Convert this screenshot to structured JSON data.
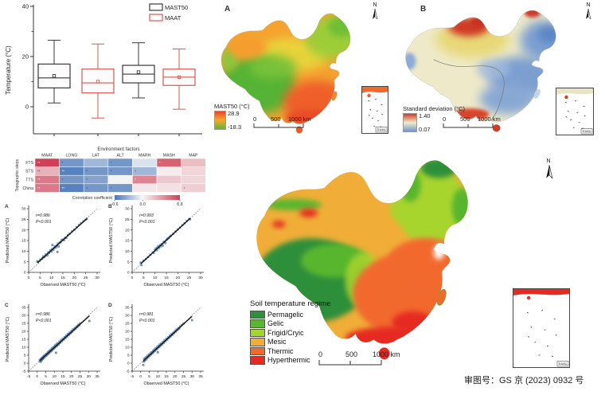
{
  "caption": "审图号：GS 京 (2023) 0932 号",
  "inset_label": "南海诸岛",
  "north_label": "N",
  "chart_data": [
    {
      "id": "boxplot",
      "type": "box",
      "ylabel": "Temperature (°C)",
      "yticks": [
        0,
        20,
        40
      ],
      "ylim": [
        -12,
        40
      ],
      "legend": [
        {
          "label": "MAST50",
          "color": "#3a3a3a"
        },
        {
          "label": "MAAT",
          "color": "#d9584e"
        }
      ],
      "groups": [
        {
          "series": "MAST50",
          "color": "#3a3a3a",
          "whislo": 1.5,
          "q1": 7.5,
          "median": 11.5,
          "mean": 12.3,
          "q3": 17.0,
          "whishi": 26.5
        },
        {
          "series": "MAAT",
          "color": "#d9584e",
          "whislo": -4.5,
          "q1": 5.5,
          "median": 9.5,
          "mean": 10.0,
          "q3": 15.0,
          "whishi": 25.0
        },
        {
          "series": "MAST50",
          "color": "#3a3a3a",
          "whislo": 3.5,
          "q1": 9.5,
          "median": 13.0,
          "mean": 13.8,
          "q3": 16.5,
          "whishi": 25.5
        },
        {
          "series": "MAAT",
          "color": "#d9584e",
          "whislo": -1.0,
          "q1": 8.5,
          "median": 11.8,
          "mean": 11.8,
          "q3": 15.0,
          "whishi": 23.0
        }
      ]
    },
    {
      "id": "heatmap",
      "type": "heatmap",
      "title": "Environment factors",
      "ylabel": "Topographic steps",
      "columns": [
        "MAAT",
        "LONG",
        "LAT",
        "ALT",
        "MARH",
        "MASH",
        "MAP"
      ],
      "rows": [
        "FTS",
        "STS",
        "TTS",
        "China"
      ],
      "values": [
        [
          0.8,
          -0.45,
          -0.3,
          -0.45,
          -0.1,
          0.65,
          0.25
        ],
        [
          0.3,
          -0.55,
          -0.45,
          -0.45,
          -0.3,
          0.05,
          0.15
        ],
        [
          0.55,
          -0.45,
          -0.4,
          -0.02,
          0.5,
          0.2,
          0.15
        ],
        [
          0.55,
          -0.55,
          -0.45,
          -0.45,
          0.08,
          0.1,
          0.18
        ]
      ],
      "sig": [
        [
          "**",
          "*",
          "",
          "*",
          "",
          "*",
          ""
        ],
        [
          "**",
          "**",
          "*",
          "*",
          "*",
          "",
          ""
        ],
        [
          "**",
          "*",
          "*",
          "",
          "*",
          "",
          ""
        ],
        [
          "**",
          "**",
          "*",
          "*",
          "",
          "",
          "*"
        ]
      ],
      "colorbar": {
        "label": "Correlation coefficient",
        "ticks": [
          "-0.6",
          "0.0",
          "0.8"
        ],
        "tick_values": [
          -0.6,
          0.0,
          0.8
        ],
        "min_color": "#4a77b8",
        "mid_color": "#f7f7f7",
        "max_color": "#cf3f55",
        "range": [
          -0.6,
          0.8
        ]
      }
    },
    {
      "id": "scatter-a",
      "type": "scatter",
      "panel": "A",
      "r_label": "r=0.986",
      "p_label": "P<0.001",
      "xlabel": "Observed MAST50 (°C)",
      "ylabel": "Predicted MAST50 (°C)",
      "min": 0,
      "max": 30,
      "tick_step": 5,
      "point_color": "#5f8ab8",
      "points": [
        [
          3.8,
          5.2
        ],
        [
          4.2,
          5.0
        ],
        [
          5.1,
          6.0
        ],
        [
          6.0,
          6.6
        ],
        [
          6.4,
          7.5
        ],
        [
          7.0,
          7.3
        ],
        [
          7.5,
          8.4
        ],
        [
          8.2,
          8.0
        ],
        [
          8.6,
          9.4
        ],
        [
          9.0,
          9.2
        ],
        [
          9.5,
          10.3
        ],
        [
          10.0,
          9.8
        ],
        [
          10.2,
          11.0
        ],
        [
          10.4,
          12.9
        ],
        [
          10.8,
          10.6
        ],
        [
          11.2,
          11.5
        ],
        [
          11.5,
          12.3
        ],
        [
          12.0,
          11.8
        ],
        [
          12.4,
          12.6
        ],
        [
          12.6,
          9.6
        ],
        [
          12.8,
          13.5
        ],
        [
          13.2,
          12.2
        ],
        [
          13.6,
          14.0
        ],
        [
          14.0,
          14.3
        ],
        [
          14.5,
          15.2
        ],
        [
          15.0,
          15.5
        ],
        [
          15.5,
          15.2
        ],
        [
          16.0,
          16.3
        ],
        [
          16.5,
          16.2
        ],
        [
          17.2,
          17.5
        ],
        [
          18.0,
          18.2
        ],
        [
          19.0,
          19.3
        ],
        [
          20.0,
          20.1
        ],
        [
          21.0,
          21.2
        ],
        [
          22.0,
          22.3
        ],
        [
          23.0,
          23.2
        ],
        [
          24.0,
          24.1
        ],
        [
          25.0,
          24.8
        ],
        [
          25.5,
          25.3
        ]
      ]
    },
    {
      "id": "scatter-b",
      "type": "scatter",
      "panel": "B",
      "r_label": "r=0.993",
      "p_label": "P<0.001",
      "xlabel": "Observed MAST50 (°C)",
      "ylabel": "Predicted MAST50 (°C)",
      "min": 0,
      "max": 30,
      "tick_step": 5,
      "point_color": "#5f8ab8",
      "points": [
        [
          3.8,
          4.6
        ],
        [
          4.1,
          3.4
        ],
        [
          5.0,
          5.5
        ],
        [
          6.0,
          6.3
        ],
        [
          7.0,
          7.2
        ],
        [
          8.0,
          8.3
        ],
        [
          9.0,
          9.4
        ],
        [
          9.5,
          9.2
        ],
        [
          10.0,
          10.4
        ],
        [
          10.3,
          11.2
        ],
        [
          10.8,
          10.5
        ],
        [
          11.0,
          11.6
        ],
        [
          11.4,
          12.3
        ],
        [
          11.8,
          11.5
        ],
        [
          12.2,
          12.8
        ],
        [
          12.6,
          12.3
        ],
        [
          13.0,
          13.4
        ],
        [
          13.4,
          12.6
        ],
        [
          13.8,
          14.2
        ],
        [
          14.2,
          14.5
        ],
        [
          14.6,
          13.8
        ],
        [
          15.0,
          15.3
        ],
        [
          15.5,
          15.8
        ],
        [
          16.0,
          16.2
        ],
        [
          16.5,
          16.8
        ],
        [
          17.0,
          17.3
        ],
        [
          18.0,
          18.2
        ],
        [
          19.0,
          19.2
        ],
        [
          20.0,
          20.2
        ],
        [
          21.0,
          21.1
        ],
        [
          22.0,
          22.2
        ],
        [
          23.0,
          23.1
        ],
        [
          24.0,
          24.2
        ],
        [
          25.0,
          25.1
        ],
        [
          25.4,
          25.0
        ]
      ]
    },
    {
      "id": "scatter-c",
      "type": "scatter",
      "panel": "C",
      "r_label": "r=0.986",
      "p_label": "P<0.001",
      "xlabel": "Observed MAST50 (°C)",
      "ylabel": "Predicted MAST50 (°C)",
      "min": -5,
      "max": 35,
      "tick_step": 5,
      "point_color": "#5f8ab8",
      "points": [
        [
          1.5,
          1.8
        ],
        [
          1.8,
          0.9
        ],
        [
          2.0,
          2.5
        ],
        [
          2.2,
          1.2
        ],
        [
          2.5,
          3.0
        ],
        [
          2.8,
          2.0
        ],
        [
          3.0,
          3.5
        ],
        [
          3.2,
          2.6
        ],
        [
          3.5,
          4.0
        ],
        [
          3.8,
          3.2
        ],
        [
          4.0,
          4.6
        ],
        [
          4.3,
          3.8
        ],
        [
          4.6,
          5.2
        ],
        [
          5.0,
          4.5
        ],
        [
          5.3,
          5.8
        ],
        [
          5.6,
          5.0
        ],
        [
          6.0,
          6.5
        ],
        [
          6.3,
          5.7
        ],
        [
          6.6,
          7.2
        ],
        [
          7.0,
          6.4
        ],
        [
          7.3,
          7.8
        ],
        [
          7.6,
          7.0
        ],
        [
          8.0,
          8.5
        ],
        [
          8.3,
          7.7
        ],
        [
          8.6,
          9.2
        ],
        [
          9.0,
          8.4
        ],
        [
          9.3,
          9.8
        ],
        [
          9.6,
          9.0
        ],
        [
          10.0,
          10.5
        ],
        [
          10.3,
          9.7
        ],
        [
          10.6,
          11.2
        ],
        [
          11.0,
          6.5
        ],
        [
          11.0,
          10.4
        ],
        [
          11.3,
          11.8
        ],
        [
          11.6,
          11.0
        ],
        [
          12.0,
          12.5
        ],
        [
          12.5,
          11.7
        ],
        [
          13.0,
          13.5
        ],
        [
          13.5,
          12.8
        ],
        [
          14.0,
          14.5
        ],
        [
          14.5,
          13.8
        ],
        [
          15.0,
          15.4
        ],
        [
          15.5,
          14.8
        ],
        [
          16.0,
          16.4
        ],
        [
          16.5,
          15.8
        ],
        [
          17.0,
          17.3
        ],
        [
          17.5,
          16.8
        ],
        [
          18.0,
          18.3
        ],
        [
          18.5,
          17.8
        ],
        [
          19.0,
          19.2
        ],
        [
          19.5,
          18.8
        ],
        [
          20.0,
          20.2
        ],
        [
          20.5,
          19.8
        ],
        [
          21.0,
          21.2
        ],
        [
          21.5,
          20.8
        ],
        [
          22.0,
          22.1
        ],
        [
          22.5,
          21.8
        ],
        [
          23.0,
          23.1
        ],
        [
          23.5,
          22.8
        ],
        [
          24.0,
          24.0
        ],
        [
          24.5,
          23.8
        ],
        [
          25.0,
          24.9
        ],
        [
          30.5,
          26.5
        ]
      ]
    },
    {
      "id": "scatter-d",
      "type": "scatter",
      "panel": "D",
      "r_label": "r=0.981",
      "p_label": "P<0.001",
      "xlabel": "Observed MAST50 (°C)",
      "ylabel": "Predicted MAST50 (°C)",
      "min": -5,
      "max": 35,
      "tick_step": 5,
      "point_color": "#5f8ab8",
      "points": [
        [
          1.5,
          -1.2
        ],
        [
          1.8,
          1.0
        ],
        [
          2.0,
          2.6
        ],
        [
          2.3,
          1.5
        ],
        [
          2.6,
          3.1
        ],
        [
          3.0,
          2.2
        ],
        [
          3.3,
          3.8
        ],
        [
          3.6,
          3.0
        ],
        [
          4.0,
          4.6
        ],
        [
          4.4,
          3.7
        ],
        [
          4.8,
          5.3
        ],
        [
          5.2,
          4.6
        ],
        [
          5.6,
          6.1
        ],
        [
          6.0,
          5.4
        ],
        [
          6.4,
          6.9
        ],
        [
          6.8,
          6.2
        ],
        [
          7.2,
          7.7
        ],
        [
          7.6,
          7.0
        ],
        [
          8.0,
          8.5
        ],
        [
          8.4,
          7.8
        ],
        [
          8.8,
          9.3
        ],
        [
          9.2,
          8.6
        ],
        [
          9.6,
          10.1
        ],
        [
          10.0,
          6.8
        ],
        [
          10.0,
          9.4
        ],
        [
          10.4,
          10.9
        ],
        [
          10.8,
          10.2
        ],
        [
          11.2,
          11.7
        ],
        [
          11.6,
          11.0
        ],
        [
          12.0,
          12.4
        ],
        [
          12.5,
          11.8
        ],
        [
          13.0,
          13.4
        ],
        [
          13.5,
          12.8
        ],
        [
          14.0,
          14.3
        ],
        [
          14.5,
          13.8
        ],
        [
          15.0,
          15.3
        ],
        [
          15.5,
          14.8
        ],
        [
          16.0,
          16.2
        ],
        [
          16.5,
          15.8
        ],
        [
          17.0,
          17.2
        ],
        [
          17.5,
          16.8
        ],
        [
          18.0,
          18.2
        ],
        [
          18.5,
          17.8
        ],
        [
          19.0,
          19.1
        ],
        [
          19.5,
          18.8
        ],
        [
          20.0,
          20.1
        ],
        [
          20.5,
          19.8
        ],
        [
          21.0,
          21.1
        ],
        [
          21.5,
          20.8
        ],
        [
          22.0,
          22.0
        ],
        [
          22.5,
          21.8
        ],
        [
          23.0,
          23.0
        ],
        [
          24.0,
          23.9
        ],
        [
          25.0,
          24.8
        ],
        [
          30.0,
          27.0
        ]
      ]
    },
    {
      "id": "map-a",
      "type": "map",
      "panel": "A",
      "legend_title": "MAST50 (°C)",
      "legend_max": "28.9",
      "legend_min": "-18.3",
      "legend_colors": [
        "#e8432c",
        "#f7a62e",
        "#5cb832"
      ],
      "scale_labels": [
        "0",
        "500",
        "1000 km"
      ]
    },
    {
      "id": "map-b",
      "type": "map",
      "panel": "B",
      "legend_title": "Standard deviation (°C)",
      "legend_max": "1.40",
      "legend_min": "0.07",
      "legend_colors": [
        "#d23b28",
        "#f0ecc8",
        "#6f97cc"
      ],
      "scale_labels": [
        "0",
        "500",
        "1000 km"
      ]
    },
    {
      "id": "map-regime",
      "type": "map",
      "legend_title": "Soil temperature regime",
      "classes": [
        {
          "label": "Permagelic",
          "color": "#2f8f3a"
        },
        {
          "label": "Gelic",
          "color": "#59b62e"
        },
        {
          "label": "Frigid/Cryic",
          "color": "#a8d42e"
        },
        {
          "label": "Mesic",
          "color": "#f0ae38"
        },
        {
          "label": "Thermic",
          "color": "#f2692e"
        },
        {
          "label": "Hyperthermic",
          "color": "#e62a22"
        }
      ],
      "scale_labels": [
        "0",
        "500",
        "1000 km"
      ]
    }
  ]
}
